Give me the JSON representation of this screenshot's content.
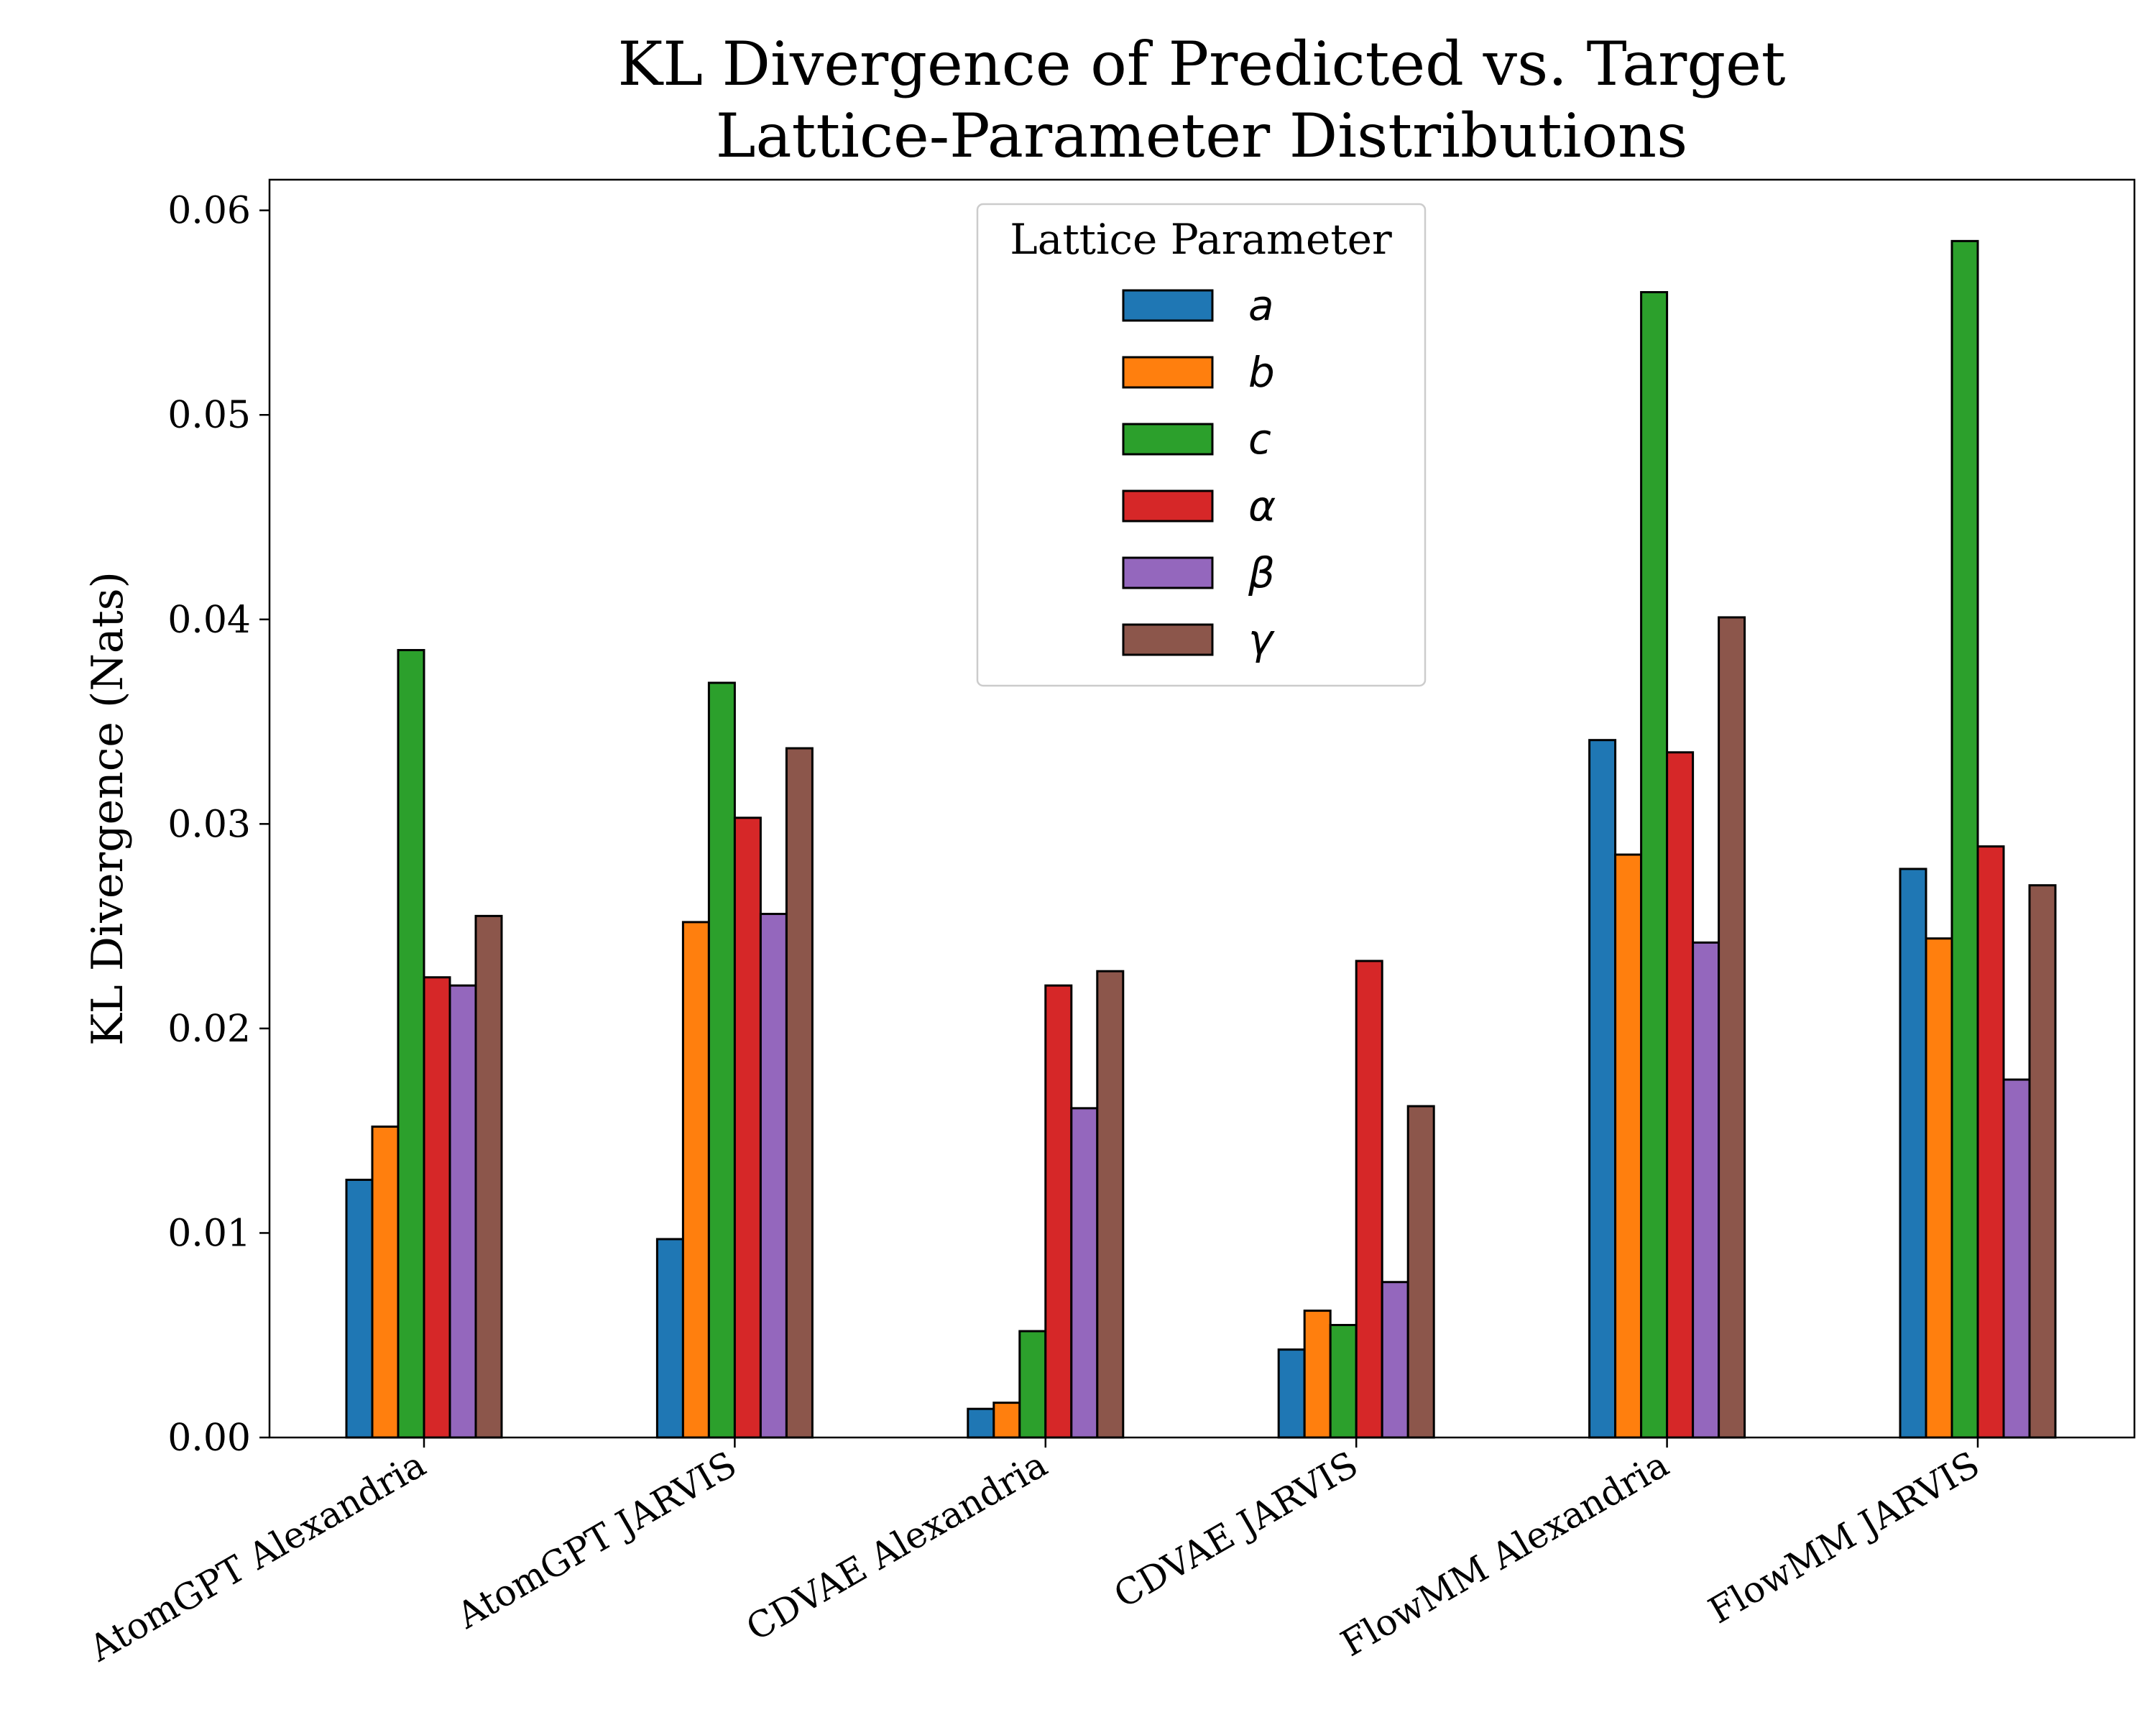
{
  "chart_data": {
    "type": "bar",
    "title_lines": [
      "KL Divergence of Predicted vs. Target",
      "Lattice-Parameter Distributions"
    ],
    "xlabel": "",
    "ylabel": "KL Divergence (Nats)",
    "ylim": [
      0,
      0.0615
    ],
    "yticks": [
      "0.00",
      "0.01",
      "0.02",
      "0.03",
      "0.04",
      "0.05",
      "0.06"
    ],
    "ytick_values": [
      0,
      0.01,
      0.02,
      0.03,
      0.04,
      0.05,
      0.06
    ],
    "categories": [
      "AtomGPT Alexandria",
      "AtomGPT JARVIS",
      "CDVAE Alexandria",
      "CDVAE JARVIS",
      "FlowMM Alexandria",
      "FlowMM JARVIS"
    ],
    "legend": {
      "title": "Lattice Parameter",
      "placement": "upper-center"
    },
    "grid": false,
    "series": [
      {
        "name": "a",
        "color": "#1f77b4",
        "values": [
          0.0126,
          0.0097,
          0.0014,
          0.0043,
          0.0341,
          0.0278
        ]
      },
      {
        "name": "b",
        "color": "#ff7f0e",
        "values": [
          0.0152,
          0.0252,
          0.0017,
          0.0062,
          0.0285,
          0.0244
        ]
      },
      {
        "name": "c",
        "color": "#2ca02c",
        "values": [
          0.0385,
          0.0369,
          0.0052,
          0.0055,
          0.056,
          0.0585
        ]
      },
      {
        "name": "α",
        "color": "#d62728",
        "values": [
          0.0225,
          0.0303,
          0.0221,
          0.0233,
          0.0335,
          0.0289
        ]
      },
      {
        "name": "β",
        "color": "#9467bd",
        "values": [
          0.0221,
          0.0256,
          0.0161,
          0.0076,
          0.0242,
          0.0175
        ]
      },
      {
        "name": "γ",
        "color": "#8c564b",
        "values": [
          0.0255,
          0.0337,
          0.0228,
          0.0162,
          0.0401,
          0.027
        ]
      }
    ]
  }
}
